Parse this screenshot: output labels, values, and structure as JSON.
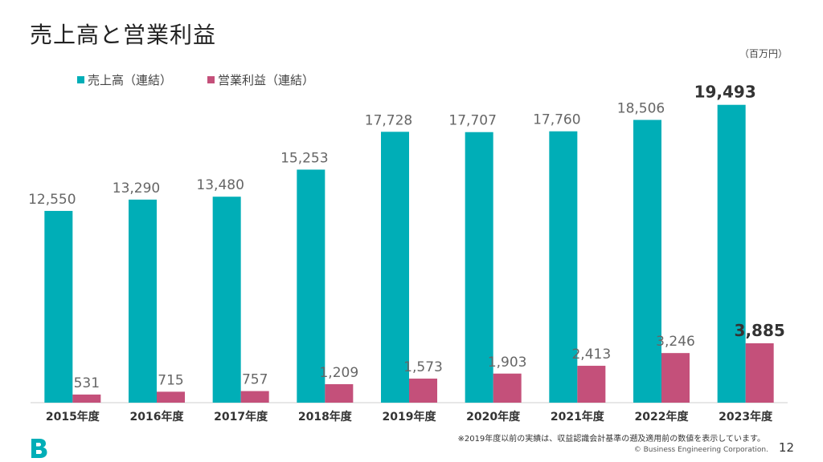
{
  "page": {
    "title": "売上高と営業利益",
    "unit": "（百万円）",
    "footnote": "※2019年度以前の実績は、収益認識会計基準の遡及適用前の数値を表示しています。",
    "copyright": "© Business Engineering Corporation.",
    "page_number": "12"
  },
  "colors": {
    "sales": "#00AEB7",
    "profit": "#C4507A",
    "data_label": "#666666",
    "highlight_label": "#333333",
    "axis": "#cfcfcf",
    "logo": "#00AEB7"
  },
  "chart_data": {
    "type": "bar",
    "categories": [
      "2015年度",
      "2016年度",
      "2017年度",
      "2018年度",
      "2019年度",
      "2020年度",
      "2021年度",
      "2022年度",
      "2023年度"
    ],
    "series": [
      {
        "name": "売上高（連結）",
        "values": [
          12550,
          13290,
          13480,
          15253,
          17728,
          17707,
          17760,
          18506,
          19493
        ]
      },
      {
        "name": "営業利益（連結）",
        "values": [
          531,
          715,
          757,
          1209,
          1573,
          1903,
          2413,
          3246,
          3885
        ]
      }
    ],
    "data_labels": {
      "sales": [
        "12,550",
        "13,290",
        "13,480",
        "15,253",
        "17,728",
        "17,707",
        "17,760",
        "18,506",
        "19,493"
      ],
      "profit": [
        "531",
        "715",
        "757",
        "1,209",
        "1,573",
        "1,903",
        "2,413",
        "3,246",
        "3,885"
      ]
    },
    "title": "",
    "xlabel": "",
    "ylabel": "",
    "ylim": [
      0,
      21000
    ],
    "grid": false,
    "legend": "top-left",
    "highlight_category_index": 8
  }
}
